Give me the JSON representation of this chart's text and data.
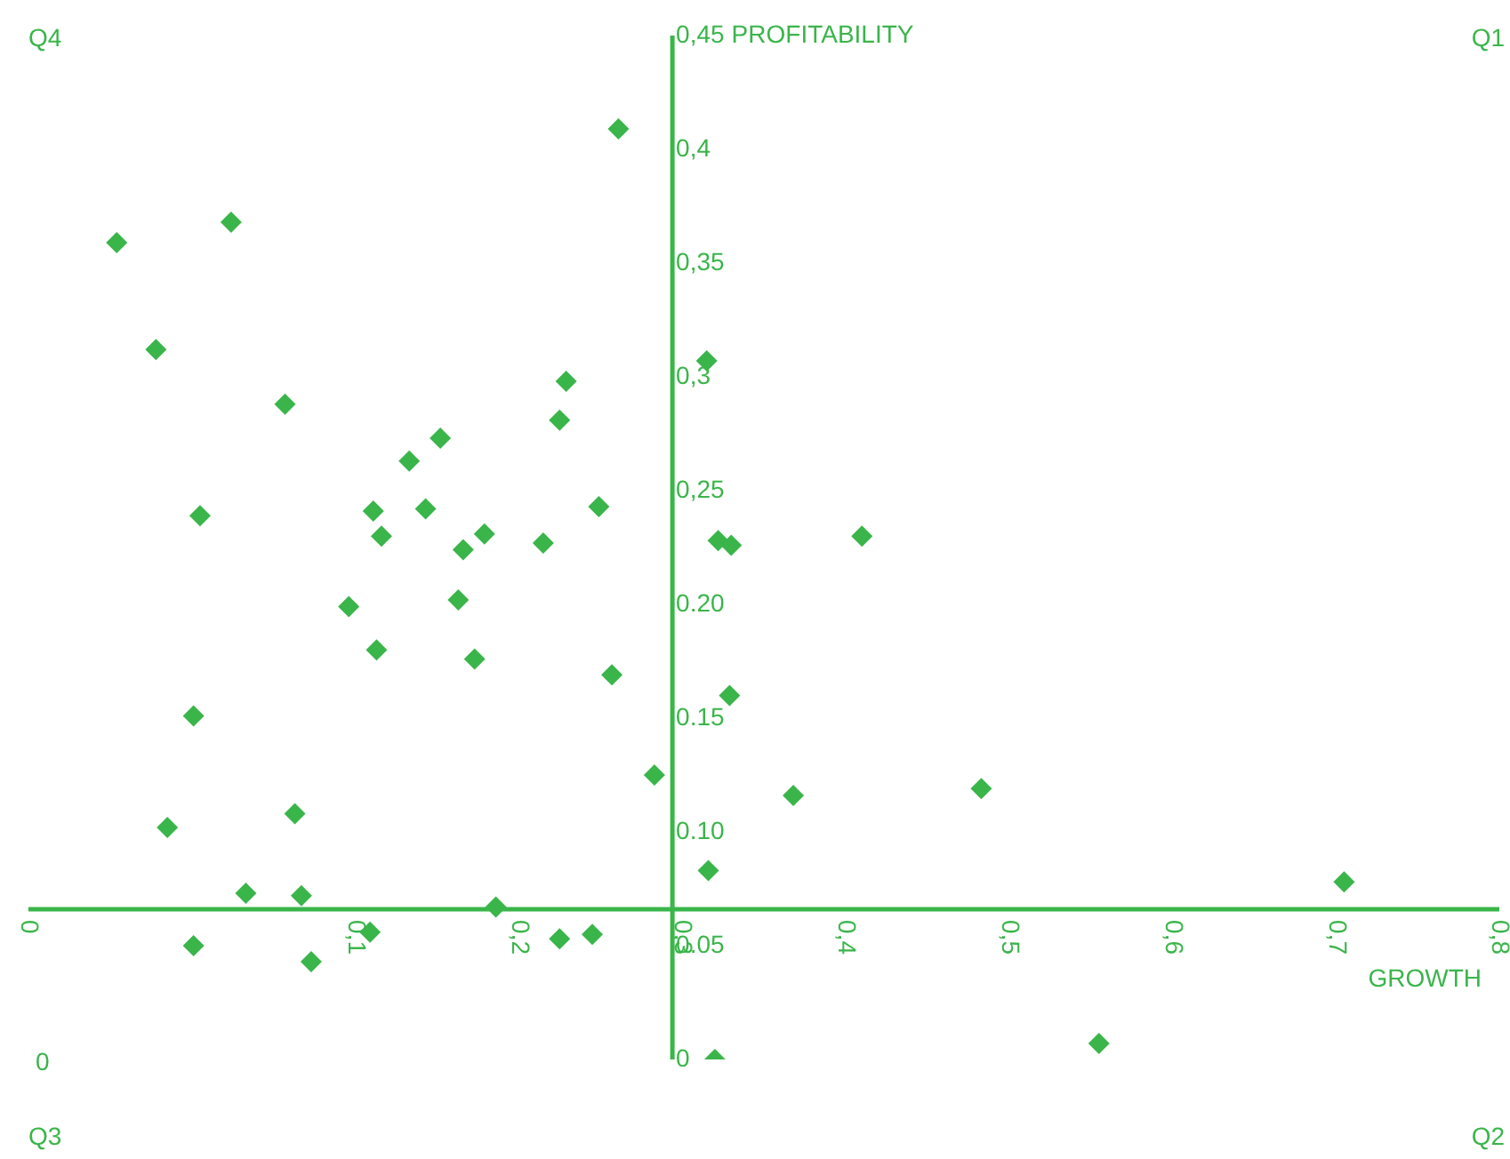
{
  "chart_data": {
    "type": "scatter",
    "xlabel": "GROWTH",
    "ylabel": "PROFITABILITY",
    "color": "#3ab54a",
    "marker": "diamond",
    "legend": false,
    "xlim": [
      -0.1,
      0.8
    ],
    "ylim": [
      0,
      0.45
    ],
    "xticks": [
      {
        "value": -0.1,
        "label": "0"
      },
      {
        "value": 0.1,
        "label": "0,1"
      },
      {
        "value": 0.2,
        "label": "0,2"
      },
      {
        "value": 0.3,
        "label": "0,3"
      },
      {
        "value": 0.4,
        "label": "0,4"
      },
      {
        "value": 0.5,
        "label": "0,5"
      },
      {
        "value": 0.6,
        "label": "0,6"
      },
      {
        "value": 0.7,
        "label": "0,7"
      },
      {
        "value": 0.8,
        "label": "0,8"
      }
    ],
    "yticks": [
      {
        "value": 0,
        "label": "0"
      },
      {
        "value": 0.05,
        "label": "0.05"
      },
      {
        "value": 0.1,
        "label": "0.10"
      },
      {
        "value": 0.15,
        "label": "0.15"
      },
      {
        "value": 0.2,
        "label": "0.20"
      },
      {
        "value": 0.25,
        "label": "0,25"
      },
      {
        "value": 0.3,
        "label": "0,3"
      },
      {
        "value": 0.35,
        "label": "0,35"
      },
      {
        "value": 0.4,
        "label": "0,4"
      },
      {
        "value": 0.45,
        "label": "0,45"
      }
    ],
    "annotations": [
      "Q4",
      "Q1",
      "Q3",
      "Q2",
      "0"
    ],
    "x": [
      0.261,
      -0.046,
      0.024,
      -0.022,
      0.315,
      0.229,
      0.057,
      0.225,
      0.152,
      0.133,
      0.005,
      0.111,
      0.143,
      0.249,
      0.116,
      0.179,
      0.166,
      0.215,
      0.322,
      0.33,
      0.41,
      0.096,
      0.163,
      0.113,
      0.173,
      0.257,
      0.001,
      0.329,
      0.283,
      0.368,
      0.483,
      -0.015,
      0.063,
      0.316,
      0.705,
      0.033,
      0.067,
      0.186,
      0.109,
      0.245,
      0.225,
      0.001,
      0.073,
      0.555,
      0.32
    ],
    "values": [
      0.409,
      0.359,
      0.368,
      0.312,
      0.307,
      0.298,
      0.288,
      0.281,
      0.273,
      0.263,
      0.239,
      0.241,
      0.242,
      0.243,
      0.23,
      0.231,
      0.224,
      0.227,
      0.228,
      0.226,
      0.23,
      0.199,
      0.202,
      0.18,
      0.176,
      0.169,
      0.151,
      0.16,
      0.125,
      0.116,
      0.119,
      0.102,
      0.108,
      0.083,
      0.078,
      0.073,
      0.072,
      0.067,
      0.056,
      0.055,
      0.053,
      0.05,
      0.043,
      0.007,
      0.0
    ]
  }
}
